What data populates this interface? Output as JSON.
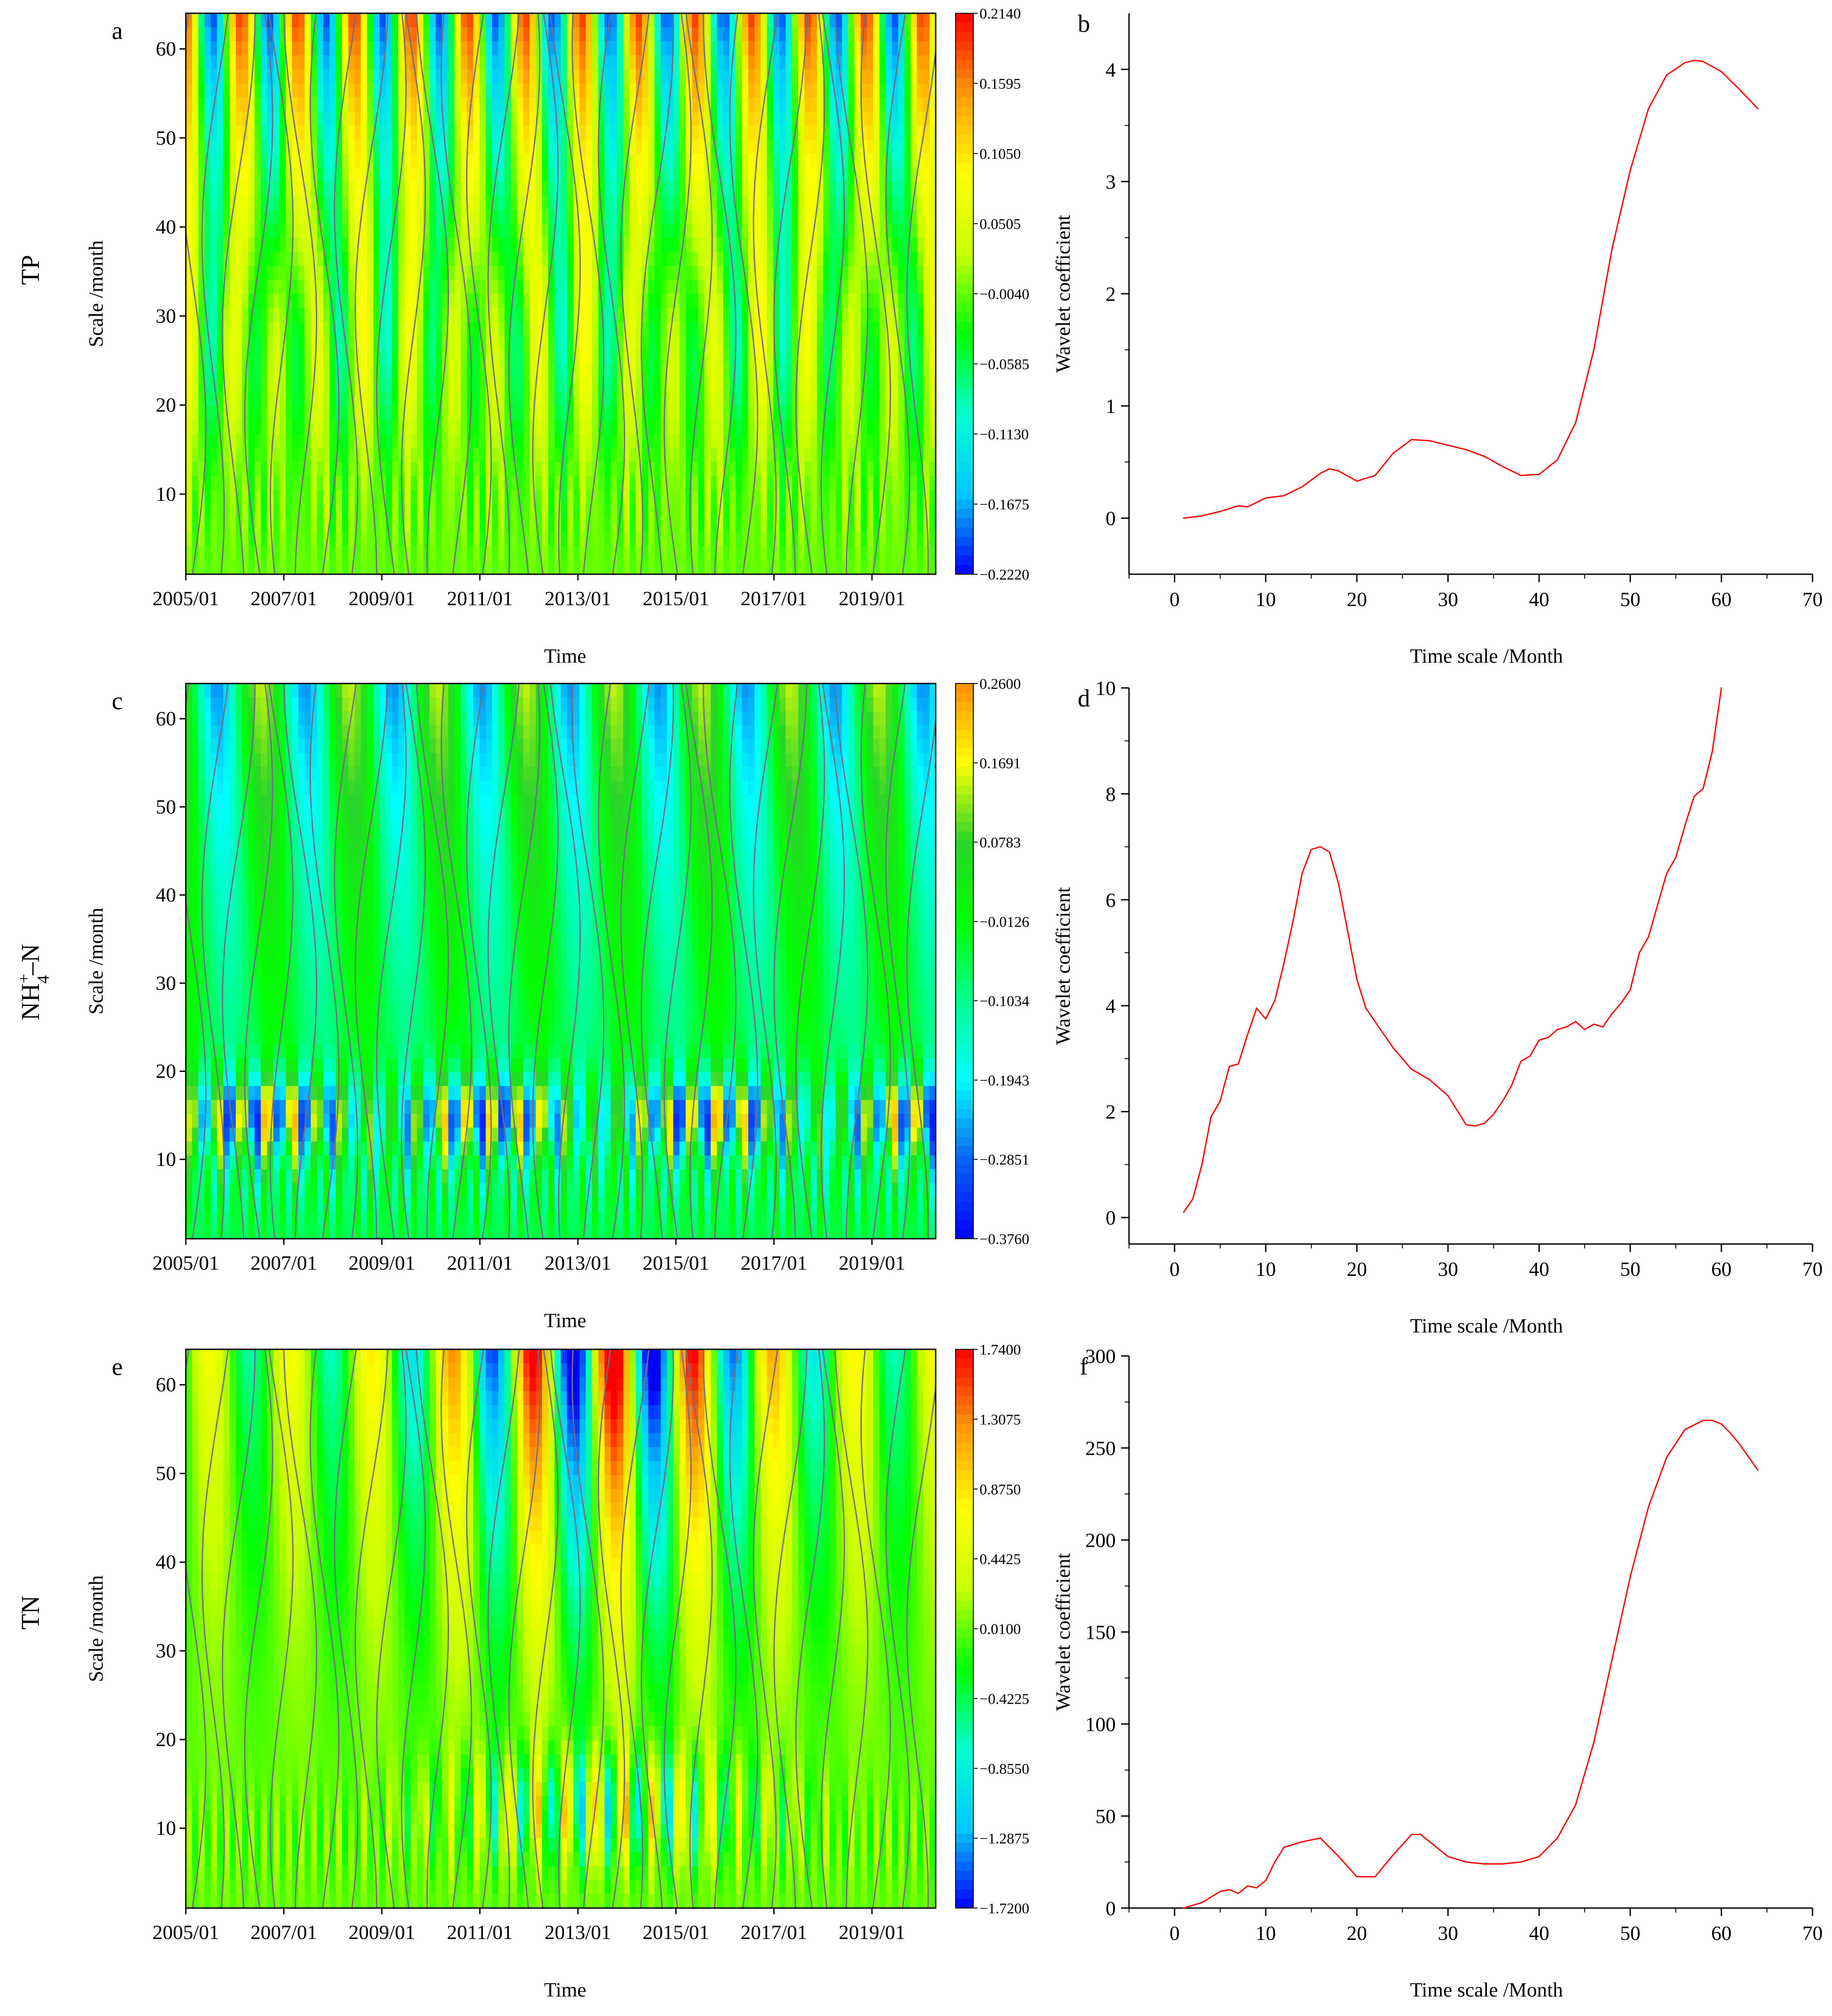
{
  "row_labels": [
    "TP",
    "NH4+-N",
    "TN"
  ],
  "nh4_label": {
    "base": "NH",
    "sup": "+",
    "sub": "4",
    "tail": "–N"
  },
  "chart_data": [
    {
      "panel": "a",
      "type": "heatmap",
      "ylabel": "Scale /month",
      "xlabel": "Time",
      "x_ticks": [
        "2005/01",
        "2007/01",
        "2009/01",
        "2011/01",
        "2013/01",
        "2015/01",
        "2017/01",
        "2019/01"
      ],
      "y_ticks": [
        10,
        20,
        30,
        40,
        50,
        60
      ],
      "ylim": [
        1,
        64
      ],
      "colorbar": [
        0.214,
        0.1595,
        0.105,
        0.0505,
        -0.004,
        -0.0585,
        -0.113,
        -0.1675,
        -0.222
      ],
      "colorbar_labels": [
        "0.2140",
        "0.1595",
        "0.1050",
        "0.0505",
        "−0.0040",
        "−0.0585",
        "−0.1130",
        "−0.1675",
        "−0.2220"
      ],
      "colormap": [
        "#0000ff",
        "#00c8ff",
        "#00ffd0",
        "#00ff00",
        "#c8ff00",
        "#ffff00",
        "#ff9900",
        "#ff0000"
      ],
      "contours": true
    },
    {
      "panel": "b",
      "type": "line",
      "xlabel": "Time scale /Month",
      "ylabel": "Wavelet coefficient",
      "xlim": [
        -5,
        70
      ],
      "ylim": [
        -0.5,
        4.5
      ],
      "x_ticks": [
        0,
        10,
        20,
        30,
        40,
        50,
        60,
        70
      ],
      "y_ticks": [
        0,
        1,
        2,
        3,
        4
      ],
      "line_color": "#ff0000",
      "x": [
        1,
        3,
        5,
        7,
        8,
        10,
        12,
        14,
        16,
        17,
        18,
        20,
        22,
        24,
        26,
        28,
        30,
        32,
        34,
        36,
        38,
        40,
        42,
        44,
        46,
        48,
        50,
        52,
        54,
        56,
        57,
        58,
        60,
        62,
        64
      ],
      "y": [
        0,
        0.02,
        0.06,
        0.11,
        0.1,
        0.18,
        0.2,
        0.28,
        0.4,
        0.44,
        0.42,
        0.33,
        0.38,
        0.58,
        0.7,
        0.69,
        0.65,
        0.61,
        0.55,
        0.46,
        0.38,
        0.39,
        0.52,
        0.85,
        1.5,
        2.4,
        3.1,
        3.65,
        3.95,
        4.06,
        4.08,
        4.07,
        3.98,
        3.82,
        3.65
      ]
    },
    {
      "panel": "c",
      "type": "heatmap",
      "ylabel": "Scale /month",
      "xlabel": "Time",
      "x_ticks": [
        "2005/01",
        "2007/01",
        "2009/01",
        "2011/01",
        "2013/01",
        "2015/01",
        "2017/01",
        "2019/01"
      ],
      "y_ticks": [
        10,
        20,
        30,
        40,
        50,
        60
      ],
      "ylim": [
        1,
        64
      ],
      "colorbar": [
        0.26,
        0.1691,
        0.0783,
        -0.0126,
        -0.1034,
        -0.1943,
        -0.2851,
        -0.376
      ],
      "colorbar_labels": [
        "0.2600",
        "0.1691",
        "0.0783",
        "−0.0126",
        "−0.1034",
        "−0.1943",
        "−0.2851",
        "−0.3760"
      ],
      "colormap": [
        "#0000ff",
        "#0a64f5",
        "#00ffff",
        "#00ff90",
        "#00ff00",
        "#2bd52b",
        "#ffff00",
        "#ff8c00"
      ],
      "contours": true
    },
    {
      "panel": "d",
      "type": "line",
      "xlabel": "Time scale /Month",
      "ylabel": "Wavelet coefficient",
      "xlim": [
        -5,
        70
      ],
      "ylim": [
        -0.5,
        10
      ],
      "x_ticks": [
        0,
        10,
        20,
        30,
        40,
        50,
        60,
        70
      ],
      "y_ticks": [
        0,
        2,
        4,
        6,
        8,
        10
      ],
      "line_color": "#ff0000",
      "x": [
        1,
        2,
        3,
        4,
        5,
        6,
        7,
        8,
        9,
        10,
        11,
        12,
        13,
        14,
        15,
        16,
        17,
        18,
        19,
        20,
        21,
        22,
        24,
        26,
        28,
        30,
        32,
        33,
        34,
        35,
        36,
        37,
        38,
        39,
        40,
        41,
        42,
        43,
        44,
        45,
        46,
        47,
        48,
        49,
        50,
        51,
        52,
        53,
        54,
        55,
        56,
        57,
        58,
        59,
        60
      ],
      "y": [
        0.1,
        0.35,
        1.0,
        1.9,
        2.2,
        2.85,
        2.9,
        3.45,
        3.95,
        3.75,
        4.1,
        4.8,
        5.6,
        6.5,
        6.95,
        7.0,
        6.9,
        6.3,
        5.4,
        4.5,
        3.95,
        3.7,
        3.2,
        2.8,
        2.6,
        2.3,
        1.75,
        1.73,
        1.78,
        1.95,
        2.2,
        2.5,
        2.95,
        3.05,
        3.35,
        3.4,
        3.55,
        3.6,
        3.7,
        3.55,
        3.65,
        3.6,
        3.85,
        4.05,
        4.3,
        5.0,
        5.3,
        5.9,
        6.5,
        6.8,
        7.4,
        7.95,
        8.1,
        8.8,
        10.0
      ]
    },
    {
      "panel": "e",
      "type": "heatmap",
      "ylabel": "Scale /month",
      "xlabel": "Time",
      "x_ticks": [
        "2005/01",
        "2007/01",
        "2009/01",
        "2011/01",
        "2013/01",
        "2015/01",
        "2017/01",
        "2019/01"
      ],
      "y_ticks": [
        10,
        20,
        30,
        40,
        50,
        60
      ],
      "ylim": [
        1,
        64
      ],
      "colorbar": [
        1.74,
        1.3075,
        0.875,
        0.4425,
        0.01,
        -0.4225,
        -0.855,
        -1.2875,
        -1.72
      ],
      "colorbar_labels": [
        "1.7400",
        "1.3075",
        "0.8750",
        "0.4425",
        "0.0100",
        "−0.4225",
        "−0.8550",
        "−1.2875",
        "−1.7200"
      ],
      "colormap": [
        "#0000ff",
        "#00c8ff",
        "#00ffd0",
        "#00ff00",
        "#c8ff00",
        "#ffff00",
        "#ff9900",
        "#ff0000"
      ],
      "contours": true
    },
    {
      "panel": "f",
      "type": "line",
      "xlabel": "Time scale /Month",
      "ylabel": "Wavelet coefficient",
      "xlim": [
        -5,
        70
      ],
      "ylim": [
        0,
        300
      ],
      "x_ticks": [
        0,
        10,
        20,
        30,
        40,
        50,
        60,
        70
      ],
      "y_ticks": [
        0,
        50,
        100,
        150,
        200,
        250,
        300
      ],
      "line_color": "#ff0000",
      "x": [
        1,
        3,
        5,
        6,
        7,
        8,
        9,
        10,
        11,
        12,
        14,
        16,
        18,
        20,
        22,
        24,
        26,
        27,
        28,
        30,
        32,
        34,
        36,
        38,
        40,
        42,
        44,
        46,
        48,
        50,
        52,
        54,
        56,
        58,
        59,
        60,
        61,
        62,
        64
      ],
      "y": [
        0,
        3,
        9,
        10,
        8,
        12,
        11,
        15,
        25,
        33,
        36,
        38,
        28,
        17,
        17,
        29,
        40,
        40,
        36,
        28,
        25,
        24,
        24,
        25,
        28,
        38,
        56,
        90,
        135,
        180,
        218,
        245,
        260,
        265,
        265,
        263,
        258,
        252,
        238
      ]
    }
  ]
}
